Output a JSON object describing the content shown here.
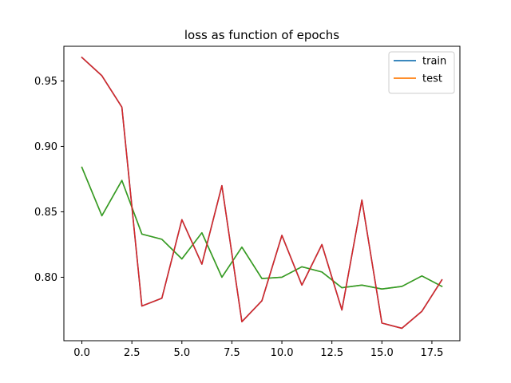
{
  "chart_data": {
    "type": "line",
    "title": "loss as function of epochs",
    "xlabel": "",
    "ylabel": "",
    "xlim": [
      -0.9,
      18.9
    ],
    "ylim": [
      0.7515,
      0.9765
    ],
    "xticks": [
      0.0,
      2.5,
      5.0,
      7.5,
      10.0,
      12.5,
      15.0,
      17.5
    ],
    "xtick_labels": [
      "0.0",
      "2.5",
      "5.0",
      "7.5",
      "10.0",
      "12.5",
      "15.0",
      "17.5"
    ],
    "yticks": [
      0.8,
      0.85,
      0.9,
      0.95
    ],
    "ytick_labels": [
      "0.80",
      "0.85",
      "0.90",
      "0.95"
    ],
    "grid": false,
    "legend_position": "top-right",
    "x": [
      0,
      1,
      2,
      3,
      4,
      5,
      6,
      7,
      8,
      9,
      10,
      11,
      12,
      13,
      14,
      15,
      16,
      17,
      18
    ],
    "series": [
      {
        "name": "train",
        "color": "#1f77b4",
        "in_legend": true,
        "values": [
          0.968,
          0.954,
          0.93,
          0.778,
          0.784,
          0.844,
          0.81,
          0.87,
          0.766,
          0.782,
          0.832,
          0.794,
          0.825,
          0.775,
          0.859,
          0.765,
          0.761,
          0.774,
          0.798
        ]
      },
      {
        "name": "test",
        "color": "#ff7f0e",
        "in_legend": true,
        "values": [
          0.884,
          0.847,
          0.874,
          0.833,
          0.829,
          0.814,
          0.834,
          0.8,
          0.823,
          0.799,
          0.8,
          0.808,
          0.804,
          0.792,
          0.794,
          0.791,
          0.793,
          0.801,
          0.793
        ]
      },
      {
        "name": "",
        "color": "#2ca02c",
        "in_legend": false,
        "values": [
          0.884,
          0.847,
          0.874,
          0.833,
          0.829,
          0.814,
          0.834,
          0.8,
          0.823,
          0.799,
          0.8,
          0.808,
          0.804,
          0.792,
          0.794,
          0.791,
          0.793,
          0.801,
          0.793
        ]
      },
      {
        "name": "",
        "color": "#d62728",
        "in_legend": false,
        "values": [
          0.968,
          0.954,
          0.93,
          0.778,
          0.784,
          0.844,
          0.81,
          0.87,
          0.766,
          0.782,
          0.832,
          0.794,
          0.825,
          0.775,
          0.859,
          0.765,
          0.761,
          0.774,
          0.798
        ]
      }
    ]
  }
}
